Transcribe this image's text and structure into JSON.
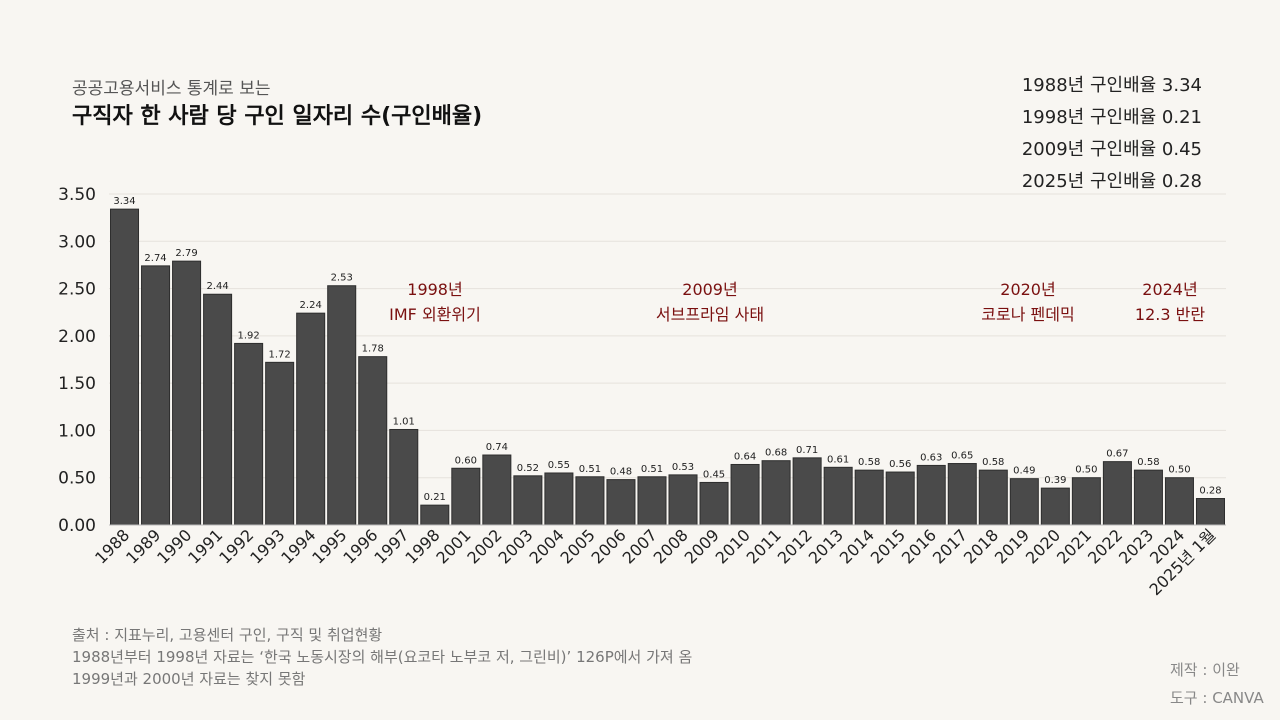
{
  "header": {
    "subtitle": "공공고용서비스 통계로 보는",
    "title": "구직자 한 사람 당 구인 일자리 수(구인배율)"
  },
  "summary": [
    "1988년 구인배율 3.34",
    "1998년 구인배율 0.21",
    "2009년 구인배율 0.45",
    "2025년 구인배율 0.28"
  ],
  "chart_data": {
    "type": "bar",
    "title": "구직자 한 사람 당 구인 일자리 수(구인배율)",
    "xlabel": "",
    "ylabel": "",
    "ylim": [
      0,
      3.5
    ],
    "y_ticks": [
      "0.00",
      "0.50",
      "1.00",
      "1.50",
      "2.00",
      "2.50",
      "3.00",
      "3.50"
    ],
    "grid": true,
    "bar_color": "#4a4a4a",
    "annotation_color": "#7a1010",
    "categories": [
      "1988",
      "1989",
      "1990",
      "1991",
      "1992",
      "1993",
      "1994",
      "1995",
      "1996",
      "1997",
      "1998",
      "2001",
      "2002",
      "2003",
      "2004",
      "2005",
      "2006",
      "2007",
      "2008",
      "2009",
      "2010",
      "2011",
      "2012",
      "2013",
      "2014",
      "2015",
      "2016",
      "2017",
      "2018",
      "2019",
      "2020",
      "2021",
      "2022",
      "2023",
      "2024",
      "2025년 1월"
    ],
    "values": [
      3.34,
      2.74,
      2.79,
      2.44,
      1.92,
      1.72,
      2.24,
      2.53,
      1.78,
      1.01,
      0.21,
      0.6,
      0.74,
      0.52,
      0.55,
      0.51,
      0.48,
      0.51,
      0.53,
      0.45,
      0.64,
      0.68,
      0.71,
      0.61,
      0.58,
      0.56,
      0.63,
      0.65,
      0.58,
      0.49,
      0.39,
      0.5,
      0.67,
      0.58,
      0.5,
      0.28
    ],
    "value_labels": [
      "3.34",
      "2.74",
      "2.79",
      "2.44",
      "1.92",
      "1.72",
      "2.24",
      "2.53",
      "1.78",
      "1.01",
      "0.21",
      "0.60",
      "0.74",
      "0.52",
      "0.55",
      "0.51",
      "0.48",
      "0.51",
      "0.53",
      "0.45",
      "0.64",
      "0.68",
      "0.71",
      "0.61",
      "0.58",
      "0.56",
      "0.63",
      "0.65",
      "0.58",
      "0.49",
      "0.39",
      "0.50",
      "0.67",
      "0.58",
      "0.50",
      "0.28"
    ],
    "annotations": [
      {
        "category": "1998",
        "line1": "1998년",
        "line2": "IMF 외환위기"
      },
      {
        "category": "2009",
        "line1": "2009년",
        "line2": "서브프라임 사태"
      },
      {
        "category": "2020",
        "line1": "2020년",
        "line2": "코로나 펜데믹"
      },
      {
        "category": "2024",
        "line1": "2024년",
        "line2": "12.3 반란"
      }
    ]
  },
  "footer": {
    "source": "출처 : 지표누리, 고용센터 구인, 구직 및 취업현황",
    "note1": "1988년부터 1998년 자료는 ‘한국 노동시장의 해부(요코타 노부코 저, 그린비)’ 126P에서 가져 옴",
    "note2": "1999년과 2000년 자료는 찾지 못함"
  },
  "credits": {
    "maker": "제작 : 이완",
    "tool": "도구 : CANVA"
  }
}
